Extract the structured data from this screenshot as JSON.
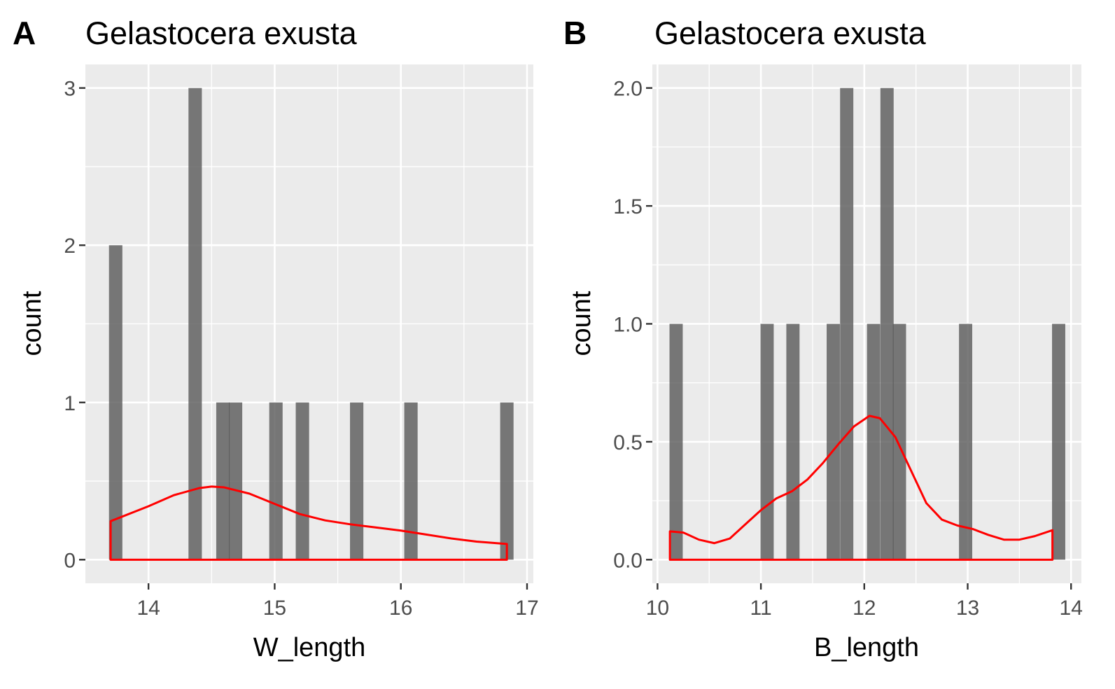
{
  "colors": {
    "panel_background": "#ebebeb",
    "grid_major": "#ffffff",
    "bar_fill": "#595959",
    "density_line": "#ff0000",
    "tick_text": "#4d4d4d"
  },
  "chart_data": [
    {
      "type": "bar",
      "tag": "A",
      "title": "Gelastocera exusta",
      "xlabel": "W_length",
      "ylabel": "count",
      "xlim": [
        13.5,
        17.05
      ],
      "ylim": [
        -0.15,
        3.15
      ],
      "x_ticks": [
        "14",
        "15",
        "16",
        "17"
      ],
      "x_tick_values": [
        14,
        15,
        16,
        17
      ],
      "y_ticks": [
        "0",
        "1",
        "2",
        "3"
      ],
      "y_tick_values": [
        0,
        1,
        2,
        3
      ],
      "grid": true,
      "bin_width": 0.106,
      "bars": [
        {
          "x": 13.74,
          "count": 2
        },
        {
          "x": 14.37,
          "count": 3
        },
        {
          "x": 14.59,
          "count": 1
        },
        {
          "x": 14.69,
          "count": 1
        },
        {
          "x": 15.01,
          "count": 1
        },
        {
          "x": 15.22,
          "count": 1
        },
        {
          "x": 15.65,
          "count": 1
        },
        {
          "x": 16.08,
          "count": 1
        },
        {
          "x": 16.84,
          "count": 1
        }
      ],
      "density": {
        "color": "#ff0000",
        "points": [
          [
            13.7,
            0.245
          ],
          [
            14.0,
            0.34
          ],
          [
            14.2,
            0.41
          ],
          [
            14.4,
            0.455
          ],
          [
            14.5,
            0.465
          ],
          [
            14.6,
            0.46
          ],
          [
            14.8,
            0.42
          ],
          [
            15.0,
            0.355
          ],
          [
            15.2,
            0.29
          ],
          [
            15.4,
            0.25
          ],
          [
            15.6,
            0.225
          ],
          [
            15.8,
            0.205
          ],
          [
            16.0,
            0.185
          ],
          [
            16.2,
            0.16
          ],
          [
            16.4,
            0.135
          ],
          [
            16.6,
            0.115
          ],
          [
            16.84,
            0.1
          ]
        ]
      }
    },
    {
      "type": "bar",
      "tag": "B",
      "title": "Gelastocera exusta",
      "xlabel": "B_length",
      "ylabel": "count",
      "xlim": [
        9.95,
        14.1
      ],
      "ylim": [
        -0.1,
        2.1
      ],
      "x_ticks": [
        "10",
        "11",
        "12",
        "13",
        "14"
      ],
      "x_tick_values": [
        10,
        11,
        12,
        13,
        14
      ],
      "y_ticks": [
        "0.0",
        "0.5",
        "1.0",
        "1.5",
        "2.0"
      ],
      "y_tick_values": [
        0,
        0.5,
        1,
        1.5,
        2
      ],
      "grid": true,
      "bin_width": 0.128,
      "bars": [
        {
          "x": 10.18,
          "count": 1
        },
        {
          "x": 11.06,
          "count": 1
        },
        {
          "x": 11.31,
          "count": 1
        },
        {
          "x": 11.7,
          "count": 1
        },
        {
          "x": 11.83,
          "count": 2
        },
        {
          "x": 12.09,
          "count": 1
        },
        {
          "x": 12.22,
          "count": 2
        },
        {
          "x": 12.34,
          "count": 1
        },
        {
          "x": 12.98,
          "count": 1
        },
        {
          "x": 13.88,
          "count": 1
        }
      ],
      "density": {
        "color": "#ff0000",
        "points": [
          [
            10.12,
            0.12
          ],
          [
            10.25,
            0.115
          ],
          [
            10.4,
            0.085
          ],
          [
            10.55,
            0.07
          ],
          [
            10.7,
            0.09
          ],
          [
            10.85,
            0.15
          ],
          [
            11.0,
            0.21
          ],
          [
            11.15,
            0.26
          ],
          [
            11.3,
            0.29
          ],
          [
            11.45,
            0.34
          ],
          [
            11.6,
            0.41
          ],
          [
            11.75,
            0.49
          ],
          [
            11.9,
            0.565
          ],
          [
            12.05,
            0.61
          ],
          [
            12.15,
            0.6
          ],
          [
            12.3,
            0.52
          ],
          [
            12.45,
            0.38
          ],
          [
            12.6,
            0.24
          ],
          [
            12.75,
            0.17
          ],
          [
            12.9,
            0.145
          ],
          [
            13.05,
            0.13
          ],
          [
            13.2,
            0.105
          ],
          [
            13.35,
            0.085
          ],
          [
            13.5,
            0.085
          ],
          [
            13.65,
            0.1
          ],
          [
            13.82,
            0.125
          ]
        ]
      }
    }
  ]
}
